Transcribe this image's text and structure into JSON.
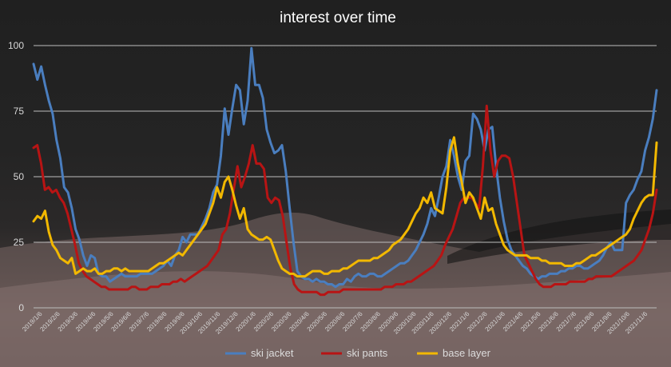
{
  "chart_data": {
    "type": "line",
    "title": "interest over time",
    "ylim": [
      0,
      100
    ],
    "yticks": [
      0,
      25,
      50,
      75,
      100
    ],
    "grid": true,
    "legend_position": "bottom",
    "x_tick_labels": [
      "2019/1/6",
      "2019/2/6",
      "2019/3/6",
      "2019/4/6",
      "2019/5/6",
      "2019/6/6",
      "2019/7/6",
      "2019/8/6",
      "2019/9/6",
      "2019/10/6",
      "2019/11/6",
      "2019/12/6",
      "2020/1/6",
      "2020/2/6",
      "2020/3/6",
      "2020/4/6",
      "2020/5/6",
      "2020/6/6",
      "2020/7/6",
      "2020/8/6",
      "2020/9/6",
      "2020/10/6",
      "2020/11/6",
      "2020/12/6",
      "2021/1/6",
      "2021/2/6",
      "2021/3/6",
      "2021/4/6",
      "2021/5/6",
      "2021/6/6",
      "2021/7/6",
      "2021/8/6",
      "2021/9/6",
      "2021/10/6",
      "2021/11/6"
    ],
    "series": [
      {
        "name": "ski jacket",
        "color": "#4a7ebf",
        "values": [
          93,
          87,
          92,
          85,
          79,
          74,
          64,
          57,
          46,
          44,
          38,
          30,
          26,
          20,
          16,
          20,
          19,
          13,
          12,
          12,
          10,
          11,
          12,
          13,
          12,
          12,
          12,
          12,
          13,
          13,
          13,
          13,
          14,
          15,
          16,
          18,
          16,
          20,
          22,
          27,
          25,
          28,
          28,
          28,
          31,
          34,
          38,
          44,
          47,
          58,
          76,
          66,
          76,
          85,
          83,
          70,
          79,
          99,
          85,
          85,
          80,
          68,
          63,
          59,
          60,
          62,
          52,
          38,
          25,
          14,
          12,
          11,
          11,
          10,
          11,
          10,
          10,
          9,
          9,
          8,
          9,
          9,
          11,
          10,
          12,
          13,
          12,
          12,
          13,
          13,
          12,
          12,
          13,
          14,
          15,
          16,
          17,
          17,
          18,
          20,
          22,
          25,
          28,
          32,
          38,
          35,
          42,
          50,
          54,
          64,
          58,
          50,
          45,
          56,
          58,
          74,
          72,
          68,
          60,
          68,
          69,
          54,
          42,
          33,
          26,
          22,
          20,
          18,
          16,
          15,
          13,
          12,
          11,
          12,
          12,
          13,
          13,
          13,
          14,
          14,
          15,
          15,
          16,
          16,
          15,
          15,
          16,
          17,
          18,
          20,
          23,
          25,
          22,
          22,
          22,
          40,
          43,
          45,
          49,
          52,
          60,
          65,
          72,
          83
        ]
      },
      {
        "name": "ski pants",
        "color": "#b81414",
        "values": [
          61,
          62,
          55,
          45,
          46,
          44,
          45,
          42,
          40,
          36,
          30,
          24,
          17,
          14,
          12,
          11,
          10,
          9,
          8,
          8,
          7,
          7,
          7,
          7,
          7,
          7,
          8,
          8,
          7,
          7,
          7,
          8,
          8,
          8,
          9,
          9,
          9,
          10,
          10,
          11,
          10,
          11,
          12,
          13,
          14,
          15,
          16,
          18,
          20,
          22,
          28,
          30,
          36,
          45,
          54,
          46,
          50,
          55,
          62,
          55,
          55,
          53,
          42,
          40,
          42,
          41,
          35,
          25,
          15,
          9,
          7,
          6,
          6,
          6,
          6,
          6,
          5,
          5,
          6,
          6,
          6,
          6,
          7,
          7,
          7,
          7,
          7,
          7,
          7,
          7,
          7,
          7,
          7,
          8,
          8,
          8,
          9,
          9,
          9,
          10,
          10,
          11,
          12,
          13,
          14,
          15,
          16,
          18,
          20,
          24,
          27,
          30,
          35,
          40,
          42,
          42,
          42,
          40,
          38,
          54,
          77,
          60,
          50,
          56,
          58,
          58,
          57,
          50,
          40,
          30,
          20,
          17,
          14,
          11,
          9,
          8,
          8,
          8,
          9,
          9,
          9,
          9,
          10,
          10,
          10,
          10,
          10,
          11,
          11,
          12,
          12,
          12,
          12,
          12,
          13,
          14,
          15,
          16,
          17,
          18,
          20,
          22,
          26,
          30,
          36,
          45
        ]
      },
      {
        "name": "base layer",
        "color": "#f2b800",
        "values": [
          33,
          35,
          34,
          37,
          29,
          24,
          22,
          19,
          18,
          17,
          19,
          13,
          14,
          15,
          14,
          14,
          15,
          13,
          13,
          14,
          14,
          15,
          15,
          14,
          15,
          14,
          14,
          14,
          14,
          14,
          14,
          15,
          16,
          17,
          17,
          18,
          19,
          20,
          21,
          20,
          22,
          24,
          26,
          28,
          30,
          32,
          36,
          40,
          46,
          42,
          48,
          50,
          45,
          39,
          34,
          38,
          30,
          28,
          27,
          26,
          26,
          27,
          26,
          22,
          18,
          15,
          14,
          13,
          13,
          12,
          12,
          12,
          13,
          14,
          14,
          14,
          13,
          13,
          14,
          14,
          14,
          15,
          15,
          16,
          17,
          18,
          18,
          18,
          18,
          19,
          19,
          20,
          21,
          22,
          24,
          25,
          26,
          28,
          30,
          33,
          36,
          38,
          42,
          40,
          44,
          38,
          37,
          36,
          46,
          60,
          65,
          55,
          48,
          40,
          44,
          42,
          38,
          34,
          42,
          37,
          38,
          32,
          28,
          24,
          22,
          21,
          20,
          20,
          20,
          20,
          19,
          19,
          19,
          18,
          18,
          17,
          17,
          17,
          17,
          16,
          16,
          16,
          17,
          17,
          18,
          19,
          20,
          20,
          21,
          22,
          23,
          24,
          25,
          26,
          27,
          28,
          30,
          34,
          37,
          40,
          42,
          43,
          43,
          63
        ]
      }
    ]
  }
}
